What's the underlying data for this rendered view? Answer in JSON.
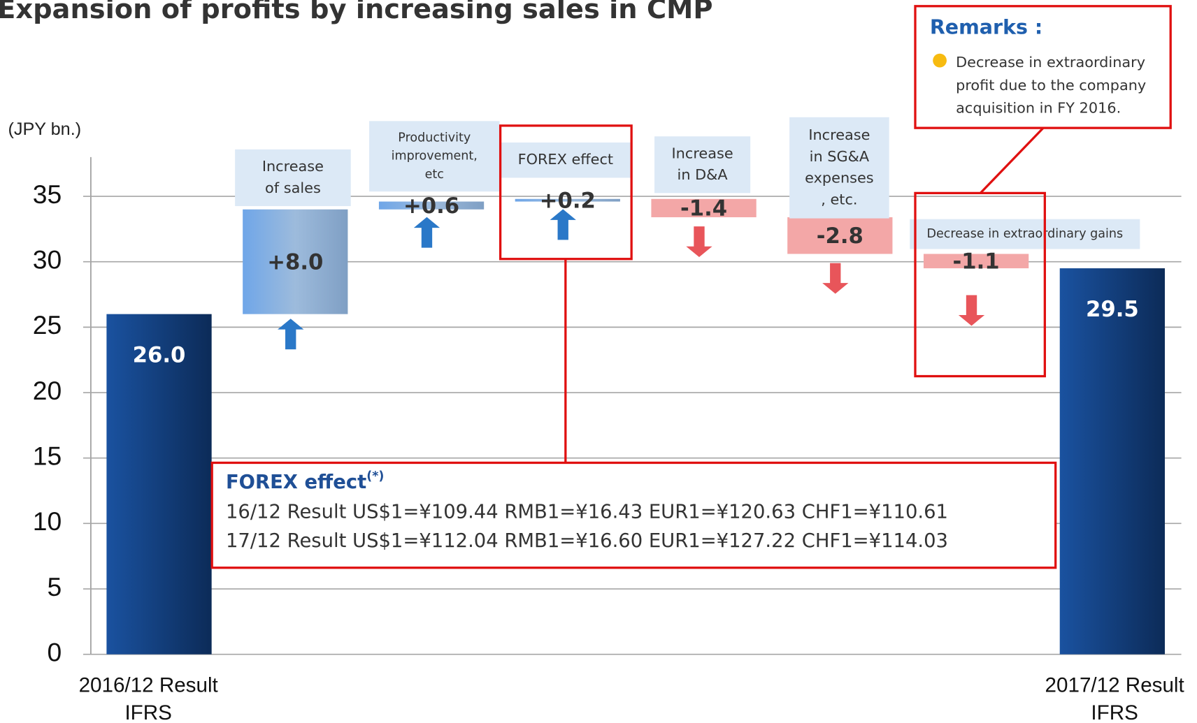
{
  "chart_data": {
    "type": "waterfall",
    "title": "Expansion of profits by increasing sales in CMP",
    "y_label": "(JPY bn.)",
    "categories": [
      "2016/12 Result\nIFRS",
      "Increase\nof sales",
      "Productivity\nimprovement,\netc",
      "FOREX effect",
      "Increase\nin D&A",
      "Increase\nin SG&A\nexpenses\n, etc.",
      "Decrease in extraordinary gains",
      "2017/12 Result\nIFRS"
    ],
    "values": [
      26.0,
      8.0,
      0.6,
      0.2,
      -1.4,
      -2.8,
      -1.1,
      29.5
    ],
    "value_labels": [
      "26.0",
      "+8.0",
      "+0.6",
      "+0.2",
      "-1.4",
      "-2.8",
      "-1.1",
      "29.5"
    ],
    "total_color": "#15478a",
    "increase_color": "#7fb0e6",
    "decrease_color": "#f3a7a7",
    "ylim": [
      0,
      38
    ],
    "yticks": [
      0,
      5,
      10,
      15,
      20,
      25,
      30,
      35
    ],
    "grid": true,
    "remarks": {
      "title": "Remarks :",
      "text": "Decrease in extraordinary\nprofit due to the company\nacquisition in FY 2016."
    },
    "forex_note": {
      "title": "FOREX effect",
      "marker": "(*)",
      "lines": [
        "16/12 Result US$1=¥109.44 RMB1=¥16.43 EUR1=¥120.63 CHF1=¥110.61",
        "17/12 Result US$1=¥112.04 RMB1=¥16.60 EUR1=¥127.22 CHF1=¥114.03"
      ]
    }
  }
}
